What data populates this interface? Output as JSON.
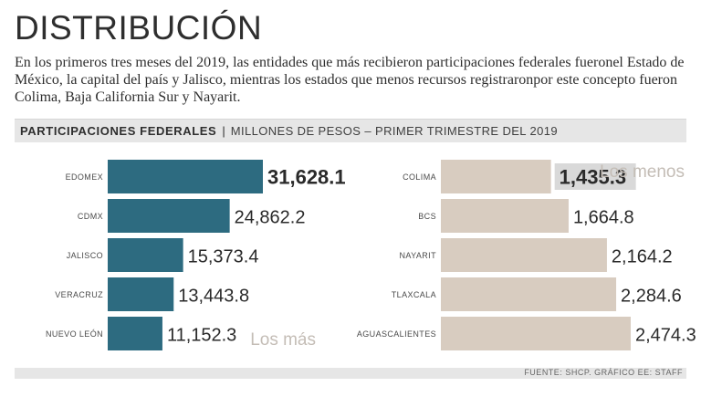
{
  "header": {
    "title": "DISTRIBUCIÓN",
    "intro": "En los primeros tres meses del 2019, las entidades que más recibieron participaciones federales fueronel Estado de México, la capital del país y Jalisco, mientras los estados que menos recursos registraronpor este concepto fueron Colima, Baja California Sur y Nayarit."
  },
  "section": {
    "bold_label": "PARTICIPACIONES FEDERALES",
    "separator": "|",
    "light_label": "MILLONES DE PESOS – PRIMER TRIMESTRE DEL 2019"
  },
  "footer": {
    "source": "FUENTE: SHCP. GRÁFICO EE: STAFF"
  },
  "colors": {
    "top": "#2d6b80",
    "bottom": "#d8ccc0",
    "top_label_bg": "#d9d9d9",
    "group_label": "#c4bdb6"
  },
  "chart_data": [
    {
      "type": "bar",
      "orientation": "horizontal",
      "group_label": "Los más",
      "categories": [
        "EDOMEX",
        "CDMX",
        "JALISCO",
        "VERACRUZ",
        "NUEVO LEÓN"
      ],
      "values": [
        31628.1,
        24862.2,
        15373.4,
        13443.8,
        11152.3
      ],
      "value_labels": [
        "31,628.1",
        "24,862.2",
        "15,373.4",
        "13,443.8",
        "11,152.3"
      ],
      "highlighted_index": 0
    },
    {
      "type": "bar",
      "orientation": "horizontal",
      "group_label": "Los menos",
      "categories": [
        "COLIMA",
        "BCS",
        "NAYARIT",
        "TLAXCALA",
        "AGUASCALIENTES"
      ],
      "values": [
        1435.3,
        1664.8,
        2164.2,
        2284.6,
        2474.3
      ],
      "value_labels": [
        "1,435.3",
        "1,664.8",
        "2,164.2",
        "2,284.6",
        "2,474.3"
      ],
      "highlighted_index": 0
    }
  ]
}
